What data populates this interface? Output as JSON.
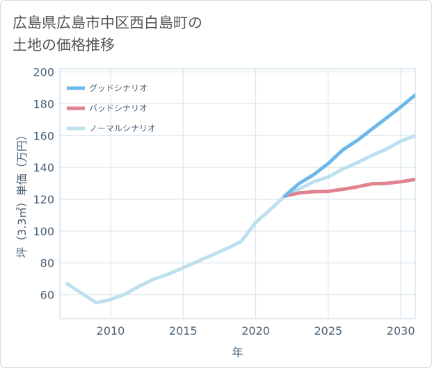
{
  "title_lines": [
    "広島県広島市中区西白島町の",
    "土地の価格推移"
  ],
  "chart_data": {
    "type": "line",
    "title": "広島県広島市中区西白島町の土地の価格推移",
    "xlabel": "年",
    "ylabel": "坪（3.3㎡）単価（万円）",
    "xlim": [
      2006.5,
      2031
    ],
    "ylim": [
      45,
      202
    ],
    "xticks": [
      2010,
      2015,
      2020,
      2025,
      2030
    ],
    "yticks": [
      60,
      80,
      100,
      120,
      140,
      160,
      180,
      200
    ],
    "grid": true,
    "legend_position": "top-left",
    "series": [
      {
        "name": "グッドシナリオ",
        "color": "#6cb8ea",
        "x": [
          2022,
          2023,
          2024,
          2025,
          2026,
          2027,
          2028,
          2029,
          2030,
          2031
        ],
        "y": [
          122,
          130,
          135.5,
          142.5,
          151,
          157,
          164,
          171,
          178,
          185.5
        ]
      },
      {
        "name": "バッドシナリオ",
        "color": "#e0838f",
        "x": [
          2022,
          2023,
          2024,
          2025,
          2026,
          2027,
          2028,
          2029,
          2030,
          2031
        ],
        "y": [
          122,
          124,
          124.8,
          125,
          126.3,
          127.8,
          129.7,
          130,
          131,
          132.5
        ]
      },
      {
        "name": "ノーマルシナリオ",
        "color": "#bde0ee",
        "x": [
          2007,
          2008,
          2009,
          2010,
          2011,
          2012,
          2013,
          2014,
          2015,
          2016,
          2017,
          2018,
          2019,
          2020,
          2021,
          2022,
          2023,
          2024,
          2025,
          2026,
          2027,
          2028,
          2029,
          2030,
          2031
        ],
        "y": [
          67,
          61,
          55,
          57,
          60.5,
          65.5,
          70,
          73,
          77,
          81,
          85,
          89,
          93.5,
          105.5,
          113.5,
          122,
          126.5,
          131,
          134,
          139,
          143,
          147.5,
          151.5,
          156.5,
          160
        ]
      }
    ]
  }
}
